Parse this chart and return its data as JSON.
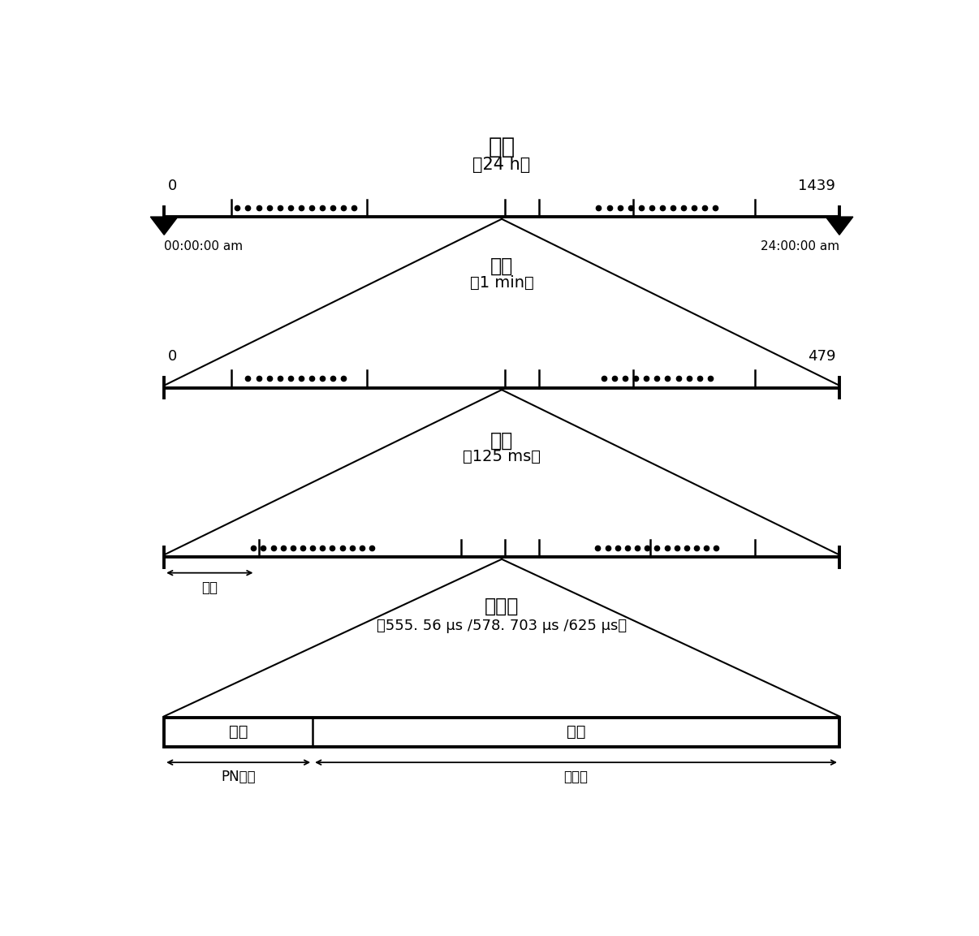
{
  "bg_color": "#ffffff",
  "text_color": "#000000",
  "title": "日帧",
  "title_sub": "（24 h）",
  "level1_label": "分帧",
  "level1_sub": "（1 min）",
  "level2_label": "超帧",
  "level2_sub": "（125 ms）",
  "level3_label": "信号帧",
  "level3_sub": "（555. 56 μs /578. 703 μs /625 μs）",
  "bar1_num_left": "0",
  "bar1_num_right": "1439",
  "bar1_time_left": "00:00:00 am",
  "bar1_time_right": "24:00:00 am",
  "bar2_num_left": "0",
  "bar2_num_right": "479",
  "header_label": "首帧",
  "pn_label": "PN序列",
  "data_label": "数据块",
  "frame_head_label": "帧头",
  "frame_body_label": "帧体"
}
